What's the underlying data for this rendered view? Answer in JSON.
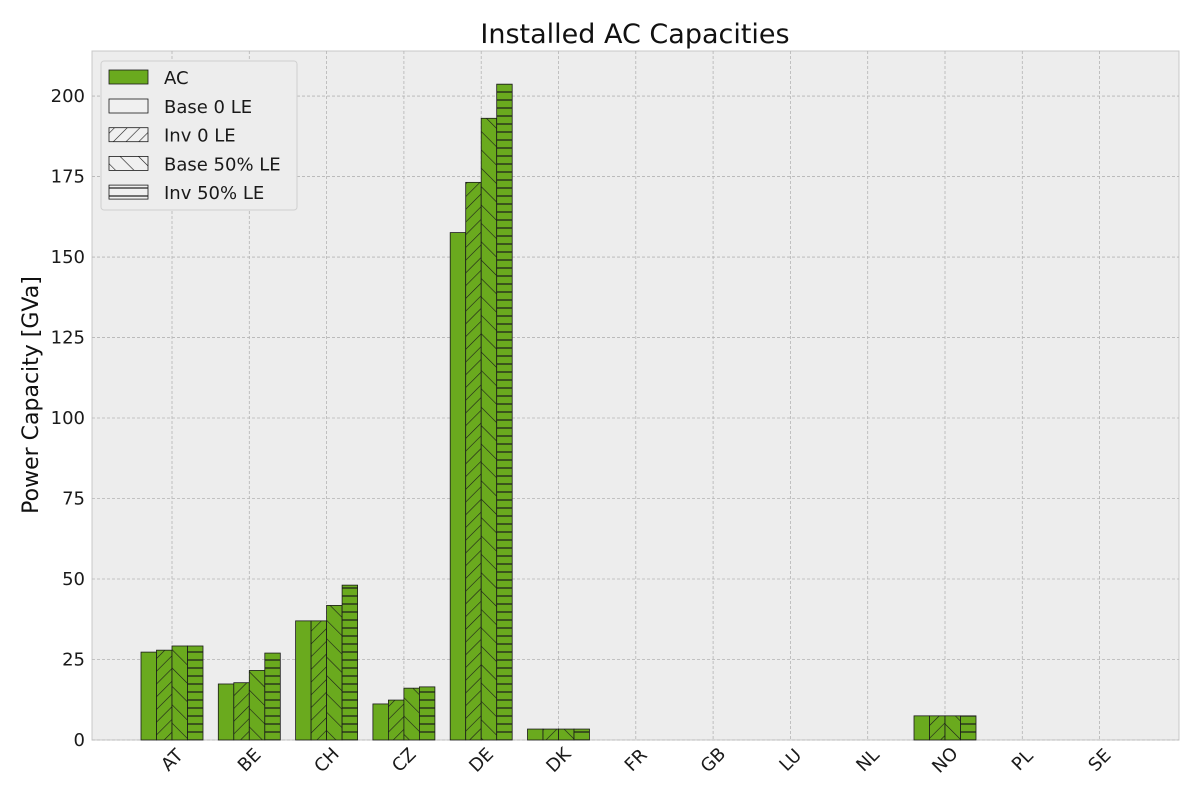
{
  "chart_data": {
    "type": "bar",
    "title": "Installed AC Capacities",
    "xlabel": "",
    "ylabel": "Power Capacity [GVa]",
    "ylim": [
      0,
      214
    ],
    "yticks": [
      0,
      25,
      50,
      75,
      100,
      125,
      150,
      175,
      200
    ],
    "grid": true,
    "legend_position": "top-left",
    "legend_title": "AC",
    "categories": [
      "AT",
      "BE",
      "CH",
      "CZ",
      "DE",
      "DK",
      "FR",
      "GB",
      "LU",
      "NL",
      "NO",
      "PL",
      "SE"
    ],
    "series": [
      {
        "name": "Base 0 LE",
        "hatch": "none",
        "values": [
          27.3,
          17.4,
          37.0,
          11.2,
          157.6,
          3.4,
          0,
          0,
          0,
          0,
          7.5,
          0,
          0
        ]
      },
      {
        "name": "Inv 0 LE",
        "hatch": "forward-diagonal",
        "values": [
          27.9,
          17.8,
          37.0,
          12.4,
          173.2,
          3.4,
          0,
          0,
          0,
          0,
          7.5,
          0,
          0
        ]
      },
      {
        "name": "Base 50% LE",
        "hatch": "back-diagonal",
        "values": [
          29.2,
          21.6,
          41.8,
          16.1,
          193.1,
          3.4,
          0,
          0,
          0,
          0,
          7.5,
          0,
          0
        ]
      },
      {
        "name": "Inv 50% LE",
        "hatch": "horizontal",
        "values": [
          29.2,
          27.0,
          48.1,
          16.5,
          203.7,
          3.4,
          0,
          0,
          0,
          0,
          7.5,
          0,
          0
        ]
      }
    ],
    "colors": {
      "bar_fill": "#6aaa1e",
      "bar_edge": "#1a1a1a",
      "plot_background": "#ededed",
      "grid": "#b4b4b4",
      "legend_ac_fill": "#6aaa1e",
      "legend_fill": "#f0f0f0"
    }
  }
}
